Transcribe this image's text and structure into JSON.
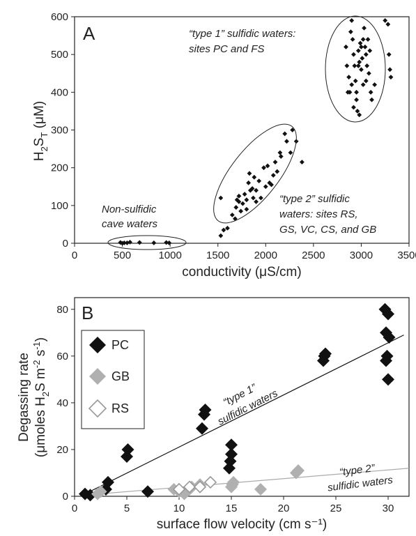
{
  "chart_data": [
    {
      "type": "scatter",
      "panel_label": "A",
      "xlabel": "conductivity (μS/cm)",
      "ylabel": "H2ST (μM)",
      "xlim": [
        0,
        3500
      ],
      "ylim": [
        0,
        600
      ],
      "xticks": [
        "0",
        "500",
        "1000",
        "1500",
        "2000",
        "2500",
        "3000",
        "3500"
      ],
      "yticks": [
        "0",
        "100",
        "200",
        "300",
        "400",
        "500",
        "600"
      ],
      "grid": false,
      "annotations": [
        {
          "lines": [
            "“type 1” sulfidic waters:",
            "sites PC and FS"
          ]
        },
        {
          "lines": [
            "“type 2” sulfidic",
            "waters: sites RS,",
            "GS, VC, CS, and GB"
          ]
        },
        {
          "lines": [
            "Non-sulfidic",
            "cave waters"
          ]
        }
      ],
      "series": [
        {
          "color": "#111111",
          "marker": "diamond",
          "points": [
            [
              480,
              2
            ],
            [
              520,
              1
            ],
            [
              580,
              3
            ],
            [
              680,
              2
            ],
            [
              830,
              1
            ],
            [
              960,
              2
            ],
            [
              990,
              1
            ],
            [
              500,
              0
            ],
            [
              550,
              1
            ],
            [
              1530,
              20
            ],
            [
              1560,
              35
            ],
            [
              1600,
              40
            ],
            [
              1680,
              65
            ],
            [
              1690,
              95
            ],
            [
              1700,
              115
            ],
            [
              1720,
              110
            ],
            [
              1740,
              85
            ],
            [
              1760,
              105
            ],
            [
              1780,
              130
            ],
            [
              1800,
              115
            ],
            [
              1820,
              160
            ],
            [
              1830,
              185
            ],
            [
              1840,
              140
            ],
            [
              1860,
              145
            ],
            [
              1870,
              120
            ],
            [
              1880,
              175
            ],
            [
              1900,
              110
            ],
            [
              1930,
              165
            ],
            [
              1950,
              120
            ],
            [
              1980,
              200
            ],
            [
              2000,
              150
            ],
            [
              2020,
              205
            ],
            [
              2040,
              160
            ],
            [
              2060,
              155
            ],
            [
              2100,
              215
            ],
            [
              2120,
              190
            ],
            [
              2150,
              240
            ],
            [
              2200,
              290
            ],
            [
              2220,
              270
            ],
            [
              2260,
              240
            ],
            [
              2280,
              300
            ],
            [
              2320,
              270
            ],
            [
              2380,
              215
            ],
            [
              1530,
              120
            ],
            [
              1720,
              125
            ],
            [
              1800,
              90
            ],
            [
              1900,
              140
            ],
            [
              2080,
              180
            ],
            [
              2160,
              230
            ],
            [
              1650,
              75
            ],
            [
              2840,
              520
            ],
            [
              2850,
              470
            ],
            [
              2870,
              440
            ],
            [
              2880,
              400
            ],
            [
              2890,
              560
            ],
            [
              2900,
              590
            ],
            [
              2910,
              540
            ],
            [
              2920,
              500
            ],
            [
              2930,
              470
            ],
            [
              2940,
              430
            ],
            [
              2950,
              380
            ],
            [
              2960,
              350
            ],
            [
              2970,
              510
            ],
            [
              2980,
              480
            ],
            [
              2990,
              530
            ],
            [
              3000,
              460
            ],
            [
              3010,
              490
            ],
            [
              3020,
              420
            ],
            [
              3030,
              570
            ],
            [
              3040,
              520
            ],
            [
              3050,
              500
            ],
            [
              3060,
              470
            ],
            [
              3070,
              540
            ],
            [
              3080,
              450
            ],
            [
              3090,
              510
            ],
            [
              3100,
              400
            ],
            [
              3110,
              380
            ],
            [
              3140,
              420
            ],
            [
              3250,
              590
            ],
            [
              3280,
              580
            ],
            [
              3290,
              500
            ],
            [
              3300,
              460
            ],
            [
              3310,
              440
            ],
            [
              2900,
              420
            ],
            [
              2950,
              400
            ],
            [
              3000,
              520
            ],
            [
              3050,
              430
            ],
            [
              2920,
              360
            ],
            [
              2980,
              340
            ],
            [
              2860,
              400
            ],
            [
              3020,
              540
            ],
            [
              2970,
              470
            ]
          ]
        }
      ]
    },
    {
      "type": "scatter",
      "panel_label": "B",
      "xlabel": "surface flow velocity (cm s⁻¹)",
      "ylabel": "Degassing rate (μmoles H2S m-2 s-1)",
      "xlim": [
        0,
        32
      ],
      "ylim": [
        0,
        85
      ],
      "xticks": [
        "0",
        "5",
        "10",
        "15",
        "20",
        "25",
        "30"
      ],
      "yticks": [
        "0",
        "20",
        "40",
        "60",
        "80"
      ],
      "grid": false,
      "legend_position": "left",
      "annotations": [
        {
          "lines": [
            "“type 1”",
            "sulfidic waters"
          ]
        },
        {
          "lines": [
            "“type 2”",
            "sulfidic waters"
          ]
        }
      ],
      "series": [
        {
          "name": "PC",
          "color": "#111111",
          "marker": "diamond-filled",
          "points": [
            [
              1,
              1
            ],
            [
              1.5,
              0.5
            ],
            [
              3,
              3
            ],
            [
              3.2,
              6
            ],
            [
              5,
              17
            ],
            [
              5.1,
              20
            ],
            [
              7,
              2
            ],
            [
              12.2,
              29
            ],
            [
              12.4,
              35
            ],
            [
              12.5,
              37
            ],
            [
              14.8,
              12
            ],
            [
              14.9,
              15
            ],
            [
              15,
              18
            ],
            [
              15,
              22
            ],
            [
              23.8,
              58
            ],
            [
              23.9,
              60
            ],
            [
              24,
              61
            ],
            [
              29.7,
              80
            ],
            [
              29.8,
              70
            ],
            [
              29.9,
              60
            ],
            [
              30,
              50
            ],
            [
              30,
              78
            ],
            [
              30.1,
              68
            ],
            [
              29.8,
              58
            ]
          ]
        },
        {
          "name": "GB",
          "color": "#b0b0b0",
          "marker": "diamond-filled",
          "points": [
            [
              2.2,
              1
            ],
            [
              2.5,
              2
            ],
            [
              9.5,
              3
            ],
            [
              10,
              2
            ],
            [
              11,
              3
            ],
            [
              11.2,
              4
            ],
            [
              12,
              5
            ],
            [
              15,
              4
            ],
            [
              15.2,
              6
            ],
            [
              17.8,
              3
            ],
            [
              21.2,
              10
            ],
            [
              21.4,
              11
            ],
            [
              10.5,
              1
            ],
            [
              15.1,
              5
            ]
          ]
        },
        {
          "name": "RS",
          "color": "#b0b0b0",
          "marker": "diamond-open",
          "points": [
            [
              10,
              3
            ],
            [
              11,
              4
            ],
            [
              12,
              4
            ],
            [
              13,
              6
            ]
          ]
        }
      ],
      "fit_lines": [
        {
          "label": "type 1",
          "color": "#111111",
          "from": [
            1,
            1
          ],
          "to": [
            31.5,
            69
          ]
        },
        {
          "label": "type 2",
          "color": "#aaaaaa",
          "from": [
            1,
            0.5
          ],
          "to": [
            32,
            12
          ]
        }
      ]
    }
  ]
}
